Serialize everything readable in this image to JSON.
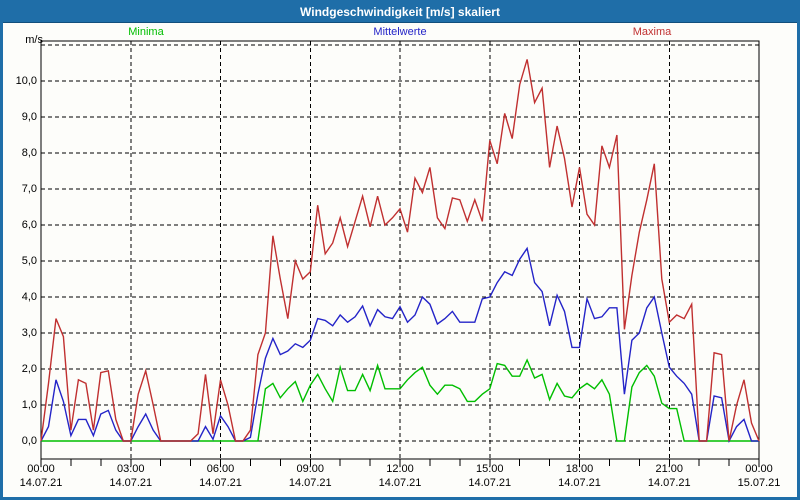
{
  "window": {
    "title": "Windgeschwindigkeit [m/s] skaliert"
  },
  "legend": [
    {
      "label": "Minima",
      "color": "#00BE00"
    },
    {
      "label": "Mittelwerte",
      "color": "#2424C8"
    },
    {
      "label": "Maxima",
      "color": "#C03030"
    }
  ],
  "chart_data": {
    "type": "line",
    "title": "Windgeschwindigkeit [m/s] skaliert",
    "ylabel": "m/s",
    "ylim": [
      0,
      11
    ],
    "grid": "dashed",
    "legend_position": "top",
    "y_ticks": [
      "0,0",
      "1,0",
      "2,0",
      "3,0",
      "4,0",
      "5,0",
      "6,0",
      "7,0",
      "8,0",
      "9,0",
      "10,0"
    ],
    "x_ticks": [
      {
        "time": "00:00",
        "date": "14.07.21"
      },
      {
        "time": "03:00",
        "date": "14.07.21"
      },
      {
        "time": "06:00",
        "date": "14.07.21"
      },
      {
        "time": "09:00",
        "date": "14.07.21"
      },
      {
        "time": "12:00",
        "date": "14.07.21"
      },
      {
        "time": "15:00",
        "date": "14.07.21"
      },
      {
        "time": "18:00",
        "date": "14.07.21"
      },
      {
        "time": "21:00",
        "date": "14.07.21"
      },
      {
        "time": "00:00",
        "date": "15.07.21"
      }
    ],
    "x_hours_range": [
      0,
      24
    ],
    "sample_interval_minutes": 15,
    "series": [
      {
        "name": "Minima",
        "color": "#00BE00",
        "values": [
          0,
          0,
          0,
          0,
          0,
          0,
          0,
          0,
          0,
          0,
          0,
          0,
          0,
          0,
          0,
          0,
          0,
          0,
          0,
          0,
          0,
          0,
          0,
          0,
          0,
          0,
          0,
          0,
          0,
          0,
          1.45,
          1.6,
          1.2,
          1.45,
          1.65,
          1.1,
          1.55,
          1.85,
          1.45,
          1.1,
          2.05,
          1.4,
          1.4,
          1.85,
          1.4,
          2.1,
          1.45,
          1.45,
          1.45,
          1.7,
          1.9,
          2.05,
          1.55,
          1.3,
          1.55,
          1.55,
          1.45,
          1.1,
          1.1,
          1.3,
          1.45,
          2.15,
          2.1,
          1.8,
          1.8,
          2.25,
          1.75,
          1.85,
          1.15,
          1.6,
          1.25,
          1.2,
          1.45,
          1.6,
          1.45,
          1.7,
          1.3,
          0,
          0,
          1.5,
          1.9,
          2.1,
          1.8,
          1.05,
          0.9,
          0.9,
          0,
          0,
          0,
          0,
          0,
          0,
          0,
          0,
          0,
          0,
          0
        ]
      },
      {
        "name": "Mittelwerte",
        "color": "#2424C8",
        "values": [
          0,
          0.4,
          1.7,
          1.1,
          0.15,
          0.6,
          0.6,
          0.15,
          0.75,
          0.85,
          0.3,
          0,
          0,
          0.4,
          0.75,
          0.3,
          0,
          0,
          0,
          0,
          0,
          0,
          0.4,
          0.05,
          0.7,
          0.4,
          0,
          0,
          0.1,
          1.3,
          2.3,
          2.85,
          2.4,
          2.5,
          2.7,
          2.6,
          2.8,
          3.4,
          3.35,
          3.2,
          3.5,
          3.3,
          3.45,
          3.75,
          3.2,
          3.65,
          3.45,
          3.4,
          3.73,
          3.3,
          3.5,
          4.0,
          3.8,
          3.25,
          3.4,
          3.6,
          3.3,
          3.3,
          3.3,
          3.95,
          4.0,
          4.4,
          4.7,
          4.6,
          5.05,
          5.35,
          4.4,
          4.15,
          3.2,
          4.05,
          3.6,
          2.6,
          2.6,
          3.95,
          3.4,
          3.45,
          3.7,
          3.7,
          1.3,
          2.8,
          3.0,
          3.7,
          4.0,
          3.0,
          2.05,
          1.8,
          1.6,
          1.3,
          0,
          0,
          1.25,
          1.2,
          0,
          0.4,
          0.6,
          0,
          0
        ]
      },
      {
        "name": "Maxima",
        "color": "#C03030",
        "values": [
          0,
          1.6,
          3.4,
          2.9,
          0.3,
          1.7,
          1.6,
          0.3,
          1.9,
          1.95,
          0.6,
          0,
          0,
          1.3,
          1.95,
          1.0,
          0,
          0,
          0,
          0,
          0,
          0.2,
          1.85,
          0.2,
          1.7,
          1.0,
          0,
          0,
          0.3,
          2.4,
          3.0,
          5.7,
          4.5,
          3.4,
          5.0,
          4.5,
          4.7,
          6.55,
          5.2,
          5.5,
          6.2,
          5.4,
          6.1,
          6.8,
          5.95,
          6.8,
          6.0,
          6.2,
          6.45,
          5.8,
          7.3,
          6.9,
          7.6,
          6.2,
          5.9,
          6.75,
          6.7,
          6.1,
          6.7,
          6.1,
          8.35,
          7.7,
          9.1,
          8.4,
          9.9,
          10.6,
          9.4,
          9.8,
          7.6,
          8.75,
          7.85,
          6.5,
          7.6,
          6.3,
          6.0,
          8.2,
          7.6,
          8.5,
          3.1,
          4.6,
          5.8,
          6.7,
          7.7,
          4.5,
          3.3,
          3.5,
          3.4,
          3.8,
          0,
          0,
          2.45,
          2.4,
          0,
          1.0,
          1.7,
          0.5,
          0
        ]
      }
    ]
  }
}
